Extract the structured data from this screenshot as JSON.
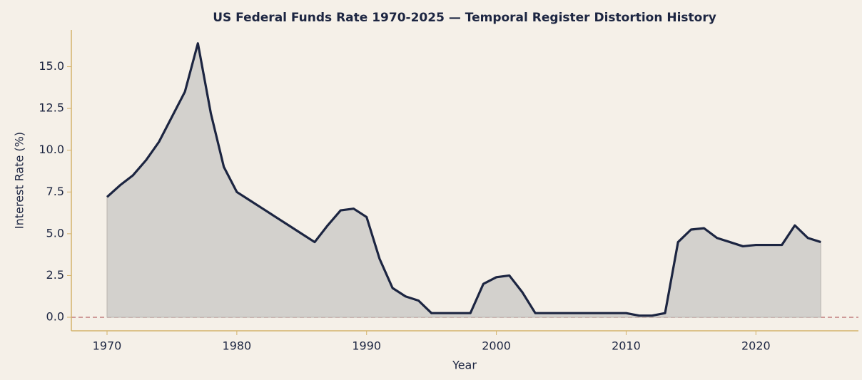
{
  "chart_data": {
    "type": "area",
    "title": "US Federal Funds Rate 1970-2025 — Temporal Register Distortion History",
    "x_label": "Year",
    "y_label": "Interest Rate (%)",
    "x": [
      1970,
      1971,
      1972,
      1973,
      1974,
      1975,
      1976,
      1977,
      1978,
      1979,
      1980,
      1981,
      1982,
      1983,
      1984,
      1985,
      1986,
      1987,
      1988,
      1989,
      1990,
      1991,
      1992,
      1993,
      1994,
      1995,
      1996,
      1997,
      1998,
      1999,
      2000,
      2001,
      2002,
      2003,
      2004,
      2005,
      2006,
      2007,
      2008,
      2009,
      2010,
      2011,
      2012,
      2013,
      2014,
      2015,
      2016,
      2017,
      2018,
      2019,
      2020,
      2021,
      2022,
      2023,
      2024,
      2025
    ],
    "series": [
      {
        "name": "Federal Funds Rate",
        "color": "#1c2541",
        "fill": "#d3d1cd",
        "values": [
          7.2,
          7.9,
          8.5,
          9.4,
          10.5,
          12.0,
          13.5,
          16.4,
          12.2,
          9.0,
          7.5,
          7.0,
          6.5,
          6.0,
          5.5,
          5.0,
          4.5,
          5.5,
          6.4,
          6.5,
          6.0,
          3.5,
          1.75,
          1.25,
          1.0,
          0.25,
          0.25,
          0.25,
          0.25,
          2.0,
          2.4,
          2.5,
          1.5,
          0.25,
          0.25,
          0.25,
          0.25,
          0.25,
          0.25,
          0.25,
          0.25,
          0.1,
          0.1,
          0.25,
          4.5,
          5.25,
          5.33,
          4.75,
          4.5,
          4.25,
          4.33,
          4.33,
          4.33,
          5.5,
          4.75,
          4.5
        ]
      }
    ],
    "reference_line": {
      "value": 0,
      "color": "#c07a7a"
    },
    "xlim": [
      1967.25,
      2027.9
    ],
    "ylim": [
      -0.81,
      17.2
    ],
    "xticks": [
      1970,
      1980,
      1990,
      2000,
      2010,
      2020
    ],
    "yticks": [
      {
        "value": 0,
        "label": "0.0"
      },
      2.5,
      {
        "value": 5,
        "label": "5.0"
      },
      7.5,
      {
        "value": 10,
        "label": "10.0"
      },
      12.5,
      {
        "value": 15,
        "label": "15.0"
      }
    ],
    "grid": false
  }
}
